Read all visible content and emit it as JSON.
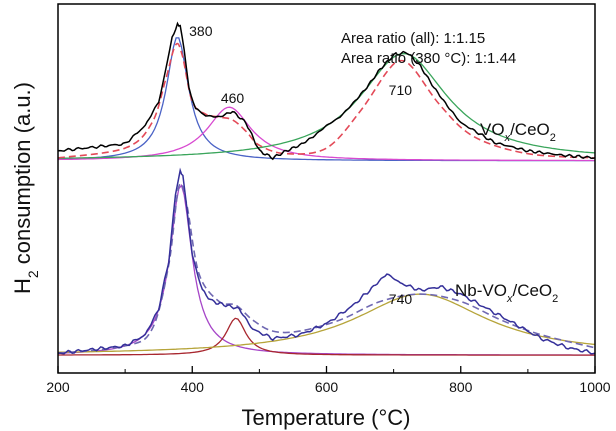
{
  "chart_data": {
    "type": "line",
    "xlabel": "Temperature (°C)",
    "ylabel": "H2 consumption (a.u.)",
    "xlim": [
      200,
      1000
    ],
    "xticks": [
      "200",
      "400",
      "600",
      "800",
      "1000"
    ],
    "yticks": "none",
    "grid": false,
    "panels": [
      {
        "label": "VOx/CeO2",
        "annotations": [
          "Area ratio (all): 1:1.15",
          "Area ratio (380 °C): 1:1.44"
        ],
        "peak_labels": [
          {
            "text": "380",
            "x": 380
          },
          {
            "text": "460",
            "x": 460
          },
          {
            "text": "710",
            "x": 710
          }
        ],
        "experimental": {
          "color": "#000000",
          "x": [
            200,
            300,
            330,
            350,
            360,
            370,
            378,
            382,
            388,
            395,
            405,
            420,
            440,
            460,
            480,
            500,
            520,
            540,
            560,
            580,
            600,
            620,
            640,
            660,
            680,
            700,
            720,
            740,
            760,
            780,
            800,
            850,
            900,
            950,
            1000
          ],
          "y": [
            0.1,
            0.15,
            0.28,
            0.45,
            0.66,
            0.9,
            1.0,
            0.98,
            0.82,
            0.55,
            0.4,
            0.35,
            0.34,
            0.38,
            0.3,
            0.1,
            0.05,
            0.1,
            0.14,
            0.2,
            0.28,
            0.34,
            0.44,
            0.55,
            0.68,
            0.78,
            0.8,
            0.7,
            0.55,
            0.42,
            0.3,
            0.16,
            0.1,
            0.07,
            0.05
          ]
        },
        "fit_total": {
          "color": "#e34a58",
          "x": [
            200,
            300,
            340,
            360,
            375,
            385,
            400,
            420,
            440,
            460,
            480,
            500,
            540,
            600,
            650,
            690,
            710,
            730,
            770,
            820,
            900,
            1000
          ],
          "y": [
            0.05,
            0.12,
            0.3,
            0.6,
            0.85,
            0.78,
            0.45,
            0.36,
            0.34,
            0.32,
            0.24,
            0.14,
            0.08,
            0.12,
            0.38,
            0.66,
            0.74,
            0.68,
            0.42,
            0.2,
            0.08,
            0.05
          ]
        },
        "components": [
          {
            "color": "#4b63c6",
            "center": 378,
            "height": 0.88,
            "width": 20
          },
          {
            "color": "#d84ad0",
            "center": 455,
            "height": 0.38,
            "width": 40
          },
          {
            "color": "#3aa55b",
            "center": 715,
            "height": 0.76,
            "width": 80
          }
        ],
        "baseline": 0.03
      },
      {
        "label": "Nb-VOx/CeO2",
        "peak_labels": [
          {
            "text": "740",
            "x": 740
          }
        ],
        "experimental": {
          "color": "#35309a",
          "x": [
            200,
            300,
            330,
            350,
            365,
            375,
            382,
            386,
            392,
            400,
            415,
            430,
            450,
            470,
            490,
            520,
            560,
            600,
            640,
            670,
            690,
            710,
            740,
            770,
            800,
            840,
            880,
            920,
            960,
            1000
          ],
          "y": [
            0.02,
            0.06,
            0.12,
            0.26,
            0.52,
            0.88,
            1.0,
            0.98,
            0.8,
            0.55,
            0.36,
            0.3,
            0.28,
            0.26,
            0.15,
            0.1,
            0.12,
            0.18,
            0.28,
            0.38,
            0.45,
            0.4,
            0.36,
            0.38,
            0.34,
            0.26,
            0.18,
            0.1,
            0.05,
            0.02
          ]
        },
        "fit_total": {
          "color": "#6f68b2",
          "x": [
            200,
            300,
            340,
            365,
            380,
            392,
            410,
            440,
            465,
            490,
            520,
            560,
            620,
            680,
            740,
            800,
            860,
            920,
            1000
          ],
          "y": [
            0.02,
            0.06,
            0.15,
            0.5,
            0.92,
            0.82,
            0.45,
            0.3,
            0.28,
            0.2,
            0.14,
            0.14,
            0.2,
            0.3,
            0.34,
            0.3,
            0.2,
            0.12,
            0.05
          ]
        },
        "components": [
          {
            "color": "#a646c8",
            "center": 383,
            "height": 0.92,
            "width": 20
          },
          {
            "color": "#a8272f",
            "center": 465,
            "height": 0.2,
            "width": 18
          },
          {
            "color": "#b6a43a",
            "center": 740,
            "height": 0.33,
            "width": 120
          }
        ],
        "baseline": 0.01
      }
    ]
  }
}
